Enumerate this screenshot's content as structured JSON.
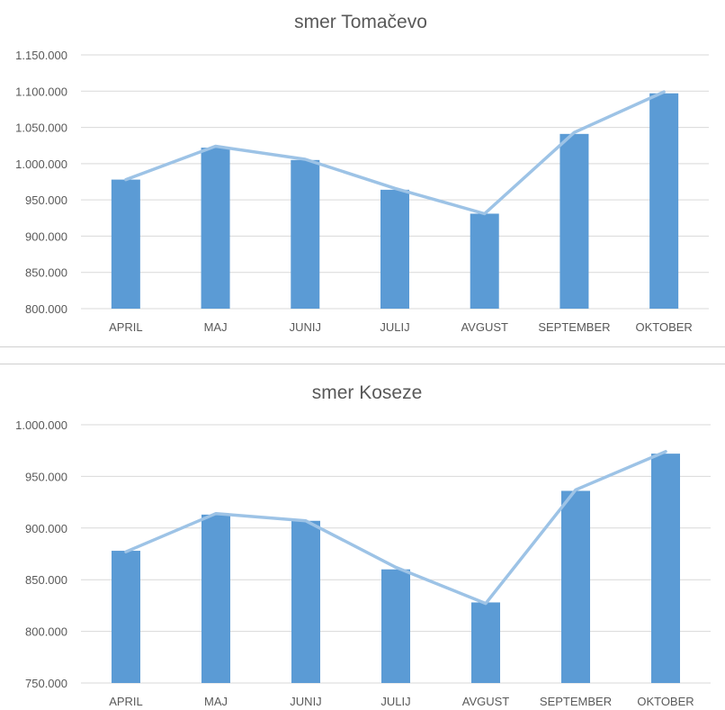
{
  "chart_data": [
    {
      "type": "bar",
      "title": "smer Tomačevo",
      "categories": [
        "APRIL",
        "MAJ",
        "JUNIJ",
        "JULIJ",
        "AVGUST",
        "SEPTEMBER",
        "OKTOBER"
      ],
      "series": [
        {
          "values": [
            978000,
            1022000,
            1005000,
            964000,
            931000,
            1041000,
            1097000
          ]
        }
      ],
      "trend_line": [
        978000,
        1024000,
        1006000,
        966000,
        931000,
        1043000,
        1099000
      ],
      "ylim": [
        800000,
        1150000
      ],
      "yticks": [
        800000,
        850000,
        900000,
        950000,
        1000000,
        1050000,
        1100000,
        1150000
      ],
      "ytick_labels": [
        "800.000",
        "850.000",
        "900.000",
        "950.000",
        "1.000.000",
        "1.050.000",
        "1.100.000",
        "1.150.000"
      ],
      "grid": true,
      "colors": {
        "bar": "#5b9bd5",
        "line": "#9dc3e6"
      }
    },
    {
      "type": "bar",
      "title": "smer Koseze",
      "categories": [
        "APRIL",
        "MAJ",
        "JUNIJ",
        "JULIJ",
        "AVGUST",
        "SEPTEMBER",
        "OKTOBER"
      ],
      "series": [
        {
          "values": [
            878000,
            913000,
            907000,
            860000,
            828000,
            936000,
            972000
          ]
        }
      ],
      "trend_line": [
        877000,
        914000,
        907000,
        862000,
        827000,
        937000,
        974000
      ],
      "ylim": [
        750000,
        1000000
      ],
      "yticks": [
        750000,
        800000,
        850000,
        900000,
        950000,
        1000000
      ],
      "ytick_labels": [
        "750.000",
        "800.000",
        "850.000",
        "900.000",
        "950.000",
        "1.000.000"
      ],
      "grid": true,
      "colors": {
        "bar": "#5b9bd5",
        "line": "#9dc3e6"
      }
    }
  ]
}
